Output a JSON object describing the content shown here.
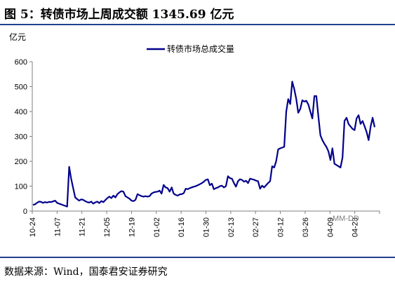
{
  "figure": {
    "title": "图 5：转债市场上周成交额 1345.69 亿元",
    "unit": "亿元",
    "source": "数据来源：Wind，国泰君安证券研究"
  },
  "colors": {
    "line": "#00008b",
    "rule": "#1f3f8f",
    "axis": "#7f7f7f"
  },
  "chart_data": {
    "type": "line",
    "title": "",
    "xlabel": "",
    "ylabel": "亿元",
    "ylim": [
      0,
      600
    ],
    "yticks": [
      0,
      100,
      200,
      300,
      400,
      500,
      600
    ],
    "grid": false,
    "legend": "top-center",
    "annotation": "MM-DD",
    "x_tick_labels": [
      "10-24",
      "11-07",
      "11-21",
      "12-05",
      "12-19",
      "01-02",
      "01-16",
      "01-30",
      "02-13",
      "02-27",
      "03-12",
      "03-26",
      "04-09",
      "04-23"
    ],
    "series": [
      {
        "name": "转债市场总成交量",
        "values": [
          25,
          27,
          33,
          38,
          37,
          33,
          36,
          34,
          37,
          36,
          39,
          42,
          33,
          30,
          27,
          24,
          21,
          18,
          178,
          130,
          92,
          55,
          48,
          42,
          47,
          45,
          40,
          36,
          34,
          38,
          30,
          35,
          38,
          32,
          40,
          36,
          44,
          52,
          58,
          52,
          62,
          55,
          68,
          75,
          80,
          78,
          60,
          55,
          50,
          42,
          40,
          45,
          68,
          64,
          60,
          58,
          60,
          58,
          60,
          70,
          75,
          77,
          78,
          82,
          70,
          105,
          95,
          92,
          78,
          95,
          70,
          65,
          62,
          67,
          68,
          72,
          90,
          88,
          92,
          95,
          98,
          100,
          104,
          108,
          112,
          118,
          125,
          128,
          104,
          110,
          88,
          92,
          95,
          100,
          102,
          95,
          100,
          140,
          132,
          130,
          112,
          98,
          120,
          128,
          125,
          118,
          122,
          112,
          130,
          128,
          126,
          122,
          120,
          90,
          102,
          95,
          104,
          113,
          120,
          180,
          175,
          200,
          248,
          252,
          255,
          258,
          400,
          450,
          430,
          520,
          490,
          450,
          395,
          410,
          445,
          440,
          443,
          428,
          400,
          372,
          462,
          462,
          380,
          304,
          285,
          270,
          258,
          240,
          205,
          252,
          190,
          185,
          180,
          175,
          215,
          362,
          375,
          350,
          340,
          330,
          325,
          372,
          385,
          350,
          362,
          340,
          318,
          285,
          340,
          375,
          337
        ]
      }
    ]
  }
}
